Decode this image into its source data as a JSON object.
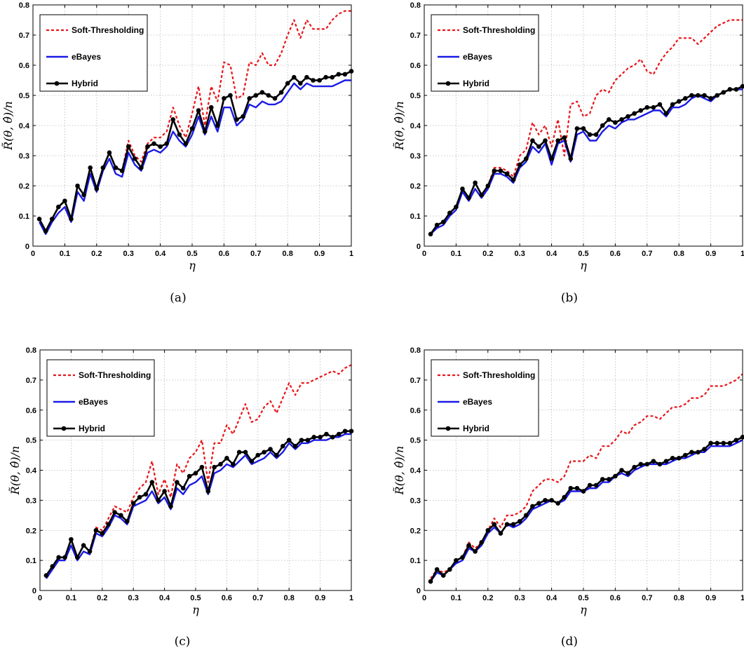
{
  "colors": {
    "soft_thresholding": "#e8161b",
    "ebayes": "#1a1ae6",
    "hybrid": "#000000"
  },
  "chart_data": [
    {
      "type": "line",
      "caption": "(a)",
      "xlabel": "η",
      "ylabel": "R̃(θ, θ̂)/n",
      "xlim": [
        0,
        1
      ],
      "ylim": [
        0,
        0.8
      ],
      "xticks": [
        "0",
        "0.1",
        "0.2",
        "0.3",
        "0.4",
        "0.5",
        "0.6",
        "0.7",
        "0.8",
        "0.9",
        "1"
      ],
      "yticks": [
        "0",
        "0.1",
        "0.2",
        "0.3",
        "0.4",
        "0.5",
        "0.6",
        "0.7",
        "0.8"
      ],
      "grid": true,
      "legend": "top-left",
      "x": [
        0.02,
        0.04,
        0.06,
        0.08,
        0.1,
        0.12,
        0.14,
        0.16,
        0.18,
        0.2,
        0.22,
        0.24,
        0.26,
        0.28,
        0.3,
        0.32,
        0.34,
        0.36,
        0.38,
        0.4,
        0.42,
        0.44,
        0.46,
        0.48,
        0.5,
        0.52,
        0.54,
        0.56,
        0.58,
        0.6,
        0.62,
        0.64,
        0.66,
        0.68,
        0.7,
        0.72,
        0.74,
        0.76,
        0.78,
        0.8,
        0.82,
        0.84,
        0.86,
        0.88,
        0.9,
        0.92,
        0.94,
        0.96,
        0.98,
        1.0
      ],
      "series": [
        {
          "name": "Soft-Thresholding",
          "style": "dashed",
          "values": [
            0.09,
            0.05,
            0.09,
            0.13,
            0.15,
            0.09,
            0.2,
            0.17,
            0.26,
            0.19,
            0.26,
            0.31,
            0.26,
            0.25,
            0.35,
            0.3,
            0.28,
            0.34,
            0.36,
            0.36,
            0.38,
            0.46,
            0.4,
            0.36,
            0.44,
            0.53,
            0.4,
            0.53,
            0.48,
            0.61,
            0.6,
            0.49,
            0.5,
            0.61,
            0.6,
            0.64,
            0.6,
            0.6,
            0.64,
            0.7,
            0.75,
            0.69,
            0.75,
            0.72,
            0.72,
            0.72,
            0.75,
            0.77,
            0.78,
            0.78
          ]
        },
        {
          "name": "eBayes",
          "style": "solid",
          "values": [
            0.08,
            0.04,
            0.08,
            0.11,
            0.13,
            0.08,
            0.18,
            0.15,
            0.24,
            0.18,
            0.25,
            0.29,
            0.24,
            0.23,
            0.31,
            0.27,
            0.25,
            0.31,
            0.32,
            0.31,
            0.33,
            0.38,
            0.35,
            0.33,
            0.37,
            0.43,
            0.37,
            0.43,
            0.38,
            0.46,
            0.46,
            0.4,
            0.42,
            0.47,
            0.46,
            0.48,
            0.47,
            0.47,
            0.48,
            0.51,
            0.54,
            0.52,
            0.54,
            0.53,
            0.53,
            0.53,
            0.53,
            0.54,
            0.55,
            0.55
          ]
        },
        {
          "name": "Hybrid",
          "style": "solid-marker",
          "values": [
            0.09,
            0.05,
            0.09,
            0.13,
            0.15,
            0.09,
            0.2,
            0.17,
            0.26,
            0.19,
            0.26,
            0.31,
            0.26,
            0.25,
            0.33,
            0.29,
            0.26,
            0.33,
            0.34,
            0.33,
            0.34,
            0.42,
            0.37,
            0.34,
            0.39,
            0.45,
            0.38,
            0.46,
            0.4,
            0.49,
            0.5,
            0.42,
            0.43,
            0.49,
            0.5,
            0.51,
            0.5,
            0.49,
            0.51,
            0.54,
            0.56,
            0.54,
            0.56,
            0.55,
            0.55,
            0.56,
            0.56,
            0.57,
            0.57,
            0.58
          ]
        }
      ]
    },
    {
      "type": "line",
      "caption": "(b)",
      "xlabel": "η",
      "ylabel": "R̃(θ, θ̂)/n",
      "xlim": [
        0,
        1
      ],
      "ylim": [
        0,
        0.8
      ],
      "xticks": [
        "0",
        "0.1",
        "0.2",
        "0.3",
        "0.4",
        "0.5",
        "0.6",
        "0.7",
        "0.8",
        "0.9",
        "1"
      ],
      "yticks": [
        "0",
        "0.1",
        "0.2",
        "0.3",
        "0.4",
        "0.5",
        "0.6",
        "0.7",
        "0.8"
      ],
      "grid": true,
      "legend": "top-left",
      "x": [
        0.02,
        0.04,
        0.06,
        0.08,
        0.1,
        0.12,
        0.14,
        0.16,
        0.18,
        0.2,
        0.22,
        0.24,
        0.26,
        0.28,
        0.3,
        0.32,
        0.34,
        0.36,
        0.38,
        0.4,
        0.42,
        0.44,
        0.46,
        0.48,
        0.5,
        0.52,
        0.54,
        0.56,
        0.58,
        0.6,
        0.62,
        0.64,
        0.66,
        0.68,
        0.7,
        0.72,
        0.74,
        0.76,
        0.78,
        0.8,
        0.82,
        0.84,
        0.86,
        0.88,
        0.9,
        0.92,
        0.94,
        0.96,
        0.98,
        1.0
      ],
      "series": [
        {
          "name": "Soft-Thresholding",
          "style": "dashed",
          "values": [
            0.04,
            0.07,
            0.08,
            0.11,
            0.13,
            0.19,
            0.16,
            0.21,
            0.17,
            0.2,
            0.26,
            0.26,
            0.25,
            0.23,
            0.3,
            0.32,
            0.41,
            0.37,
            0.4,
            0.33,
            0.42,
            0.3,
            0.47,
            0.48,
            0.43,
            0.44,
            0.5,
            0.52,
            0.51,
            0.55,
            0.57,
            0.59,
            0.6,
            0.62,
            0.58,
            0.57,
            0.61,
            0.64,
            0.66,
            0.69,
            0.69,
            0.69,
            0.67,
            0.69,
            0.71,
            0.73,
            0.74,
            0.75,
            0.75,
            0.75
          ]
        },
        {
          "name": "eBayes",
          "style": "solid",
          "values": [
            0.04,
            0.06,
            0.07,
            0.1,
            0.12,
            0.18,
            0.15,
            0.19,
            0.16,
            0.19,
            0.24,
            0.24,
            0.23,
            0.21,
            0.26,
            0.28,
            0.33,
            0.31,
            0.34,
            0.27,
            0.34,
            0.35,
            0.28,
            0.37,
            0.38,
            0.35,
            0.35,
            0.38,
            0.4,
            0.39,
            0.41,
            0.42,
            0.42,
            0.43,
            0.44,
            0.45,
            0.45,
            0.43,
            0.46,
            0.46,
            0.47,
            0.49,
            0.5,
            0.49,
            0.48,
            0.5,
            0.51,
            0.52,
            0.52,
            0.52
          ]
        },
        {
          "name": "Hybrid",
          "style": "solid-marker",
          "values": [
            0.04,
            0.07,
            0.08,
            0.11,
            0.13,
            0.19,
            0.16,
            0.21,
            0.17,
            0.2,
            0.25,
            0.25,
            0.24,
            0.22,
            0.27,
            0.29,
            0.35,
            0.33,
            0.35,
            0.29,
            0.35,
            0.36,
            0.29,
            0.39,
            0.39,
            0.37,
            0.37,
            0.4,
            0.42,
            0.41,
            0.42,
            0.43,
            0.44,
            0.45,
            0.46,
            0.46,
            0.47,
            0.44,
            0.47,
            0.48,
            0.49,
            0.5,
            0.5,
            0.5,
            0.49,
            0.5,
            0.51,
            0.52,
            0.52,
            0.53
          ]
        }
      ]
    },
    {
      "type": "line",
      "caption": "(c)",
      "xlabel": "η",
      "ylabel": "R̃(θ, θ̂)/n",
      "xlim": [
        0,
        1
      ],
      "ylim": [
        0,
        0.8
      ],
      "xticks": [
        "0",
        "0.1",
        "0.2",
        "0.3",
        "0.4",
        "0.5",
        "0.6",
        "0.7",
        "0.8",
        "0.9",
        "1"
      ],
      "yticks": [
        "0",
        "0.1",
        "0.2",
        "0.3",
        "0.4",
        "0.5",
        "0.6",
        "0.7",
        "0.8"
      ],
      "grid": true,
      "legend": "top-left",
      "x": [
        0.02,
        0.04,
        0.06,
        0.08,
        0.1,
        0.12,
        0.14,
        0.16,
        0.18,
        0.2,
        0.22,
        0.24,
        0.26,
        0.28,
        0.3,
        0.32,
        0.34,
        0.36,
        0.38,
        0.4,
        0.42,
        0.44,
        0.46,
        0.48,
        0.5,
        0.52,
        0.54,
        0.56,
        0.58,
        0.6,
        0.62,
        0.64,
        0.66,
        0.68,
        0.7,
        0.72,
        0.74,
        0.76,
        0.78,
        0.8,
        0.82,
        0.84,
        0.86,
        0.88,
        0.9,
        0.92,
        0.94,
        0.96,
        0.98,
        1.0
      ],
      "series": [
        {
          "name": "Soft-Thresholding",
          "style": "dashed",
          "values": [
            0.05,
            0.08,
            0.11,
            0.11,
            0.17,
            0.11,
            0.15,
            0.13,
            0.21,
            0.2,
            0.24,
            0.28,
            0.27,
            0.26,
            0.31,
            0.34,
            0.36,
            0.43,
            0.32,
            0.37,
            0.31,
            0.42,
            0.39,
            0.44,
            0.46,
            0.5,
            0.36,
            0.49,
            0.49,
            0.55,
            0.52,
            0.57,
            0.62,
            0.56,
            0.57,
            0.61,
            0.63,
            0.59,
            0.64,
            0.69,
            0.65,
            0.69,
            0.69,
            0.7,
            0.71,
            0.72,
            0.73,
            0.72,
            0.74,
            0.75
          ]
        },
        {
          "name": "eBayes",
          "style": "solid",
          "values": [
            0.04,
            0.07,
            0.1,
            0.1,
            0.15,
            0.1,
            0.13,
            0.12,
            0.19,
            0.18,
            0.21,
            0.25,
            0.24,
            0.22,
            0.28,
            0.29,
            0.3,
            0.33,
            0.29,
            0.31,
            0.27,
            0.34,
            0.32,
            0.35,
            0.36,
            0.38,
            0.32,
            0.39,
            0.4,
            0.42,
            0.41,
            0.43,
            0.45,
            0.42,
            0.43,
            0.44,
            0.46,
            0.44,
            0.46,
            0.49,
            0.47,
            0.49,
            0.49,
            0.5,
            0.5,
            0.5,
            0.51,
            0.51,
            0.52,
            0.52
          ]
        },
        {
          "name": "Hybrid",
          "style": "solid-marker",
          "values": [
            0.05,
            0.08,
            0.11,
            0.11,
            0.17,
            0.11,
            0.15,
            0.13,
            0.2,
            0.19,
            0.22,
            0.26,
            0.25,
            0.23,
            0.29,
            0.31,
            0.32,
            0.36,
            0.3,
            0.33,
            0.28,
            0.36,
            0.34,
            0.38,
            0.39,
            0.41,
            0.33,
            0.41,
            0.42,
            0.44,
            0.42,
            0.46,
            0.46,
            0.43,
            0.45,
            0.46,
            0.47,
            0.45,
            0.48,
            0.5,
            0.48,
            0.5,
            0.5,
            0.51,
            0.51,
            0.52,
            0.51,
            0.52,
            0.53,
            0.53
          ]
        }
      ]
    },
    {
      "type": "line",
      "caption": "(d)",
      "xlabel": "η",
      "ylabel": "R̃(θ, θ̂)/n",
      "xlim": [
        0,
        1
      ],
      "ylim": [
        0,
        0.8
      ],
      "xticks": [
        "0",
        "0.1",
        "0.2",
        "0.3",
        "0.4",
        "0.5",
        "0.6",
        "0.7",
        "0.8",
        "0.9",
        "1"
      ],
      "yticks": [
        "0",
        "0.1",
        "0.2",
        "0.3",
        "0.4",
        "0.5",
        "0.6",
        "0.7",
        "0.8"
      ],
      "grid": true,
      "legend": "top-left",
      "x": [
        0.02,
        0.04,
        0.06,
        0.08,
        0.1,
        0.12,
        0.14,
        0.16,
        0.18,
        0.2,
        0.22,
        0.24,
        0.26,
        0.28,
        0.3,
        0.32,
        0.34,
        0.36,
        0.38,
        0.4,
        0.42,
        0.44,
        0.46,
        0.48,
        0.5,
        0.52,
        0.54,
        0.56,
        0.58,
        0.6,
        0.62,
        0.64,
        0.66,
        0.68,
        0.7,
        0.72,
        0.74,
        0.76,
        0.78,
        0.8,
        0.82,
        0.84,
        0.86,
        0.88,
        0.9,
        0.92,
        0.94,
        0.96,
        0.98,
        1.0
      ],
      "series": [
        {
          "name": "Soft-Thresholding",
          "style": "dashed",
          "values": [
            0.04,
            0.07,
            0.06,
            0.07,
            0.1,
            0.11,
            0.16,
            0.14,
            0.16,
            0.2,
            0.24,
            0.21,
            0.25,
            0.25,
            0.26,
            0.28,
            0.33,
            0.35,
            0.37,
            0.37,
            0.36,
            0.38,
            0.43,
            0.43,
            0.43,
            0.45,
            0.44,
            0.48,
            0.48,
            0.5,
            0.53,
            0.52,
            0.55,
            0.56,
            0.58,
            0.58,
            0.57,
            0.59,
            0.61,
            0.61,
            0.62,
            0.64,
            0.64,
            0.65,
            0.68,
            0.68,
            0.68,
            0.69,
            0.7,
            0.72
          ]
        },
        {
          "name": "eBayes",
          "style": "solid",
          "values": [
            0.03,
            0.06,
            0.05,
            0.07,
            0.09,
            0.1,
            0.14,
            0.13,
            0.15,
            0.19,
            0.21,
            0.19,
            0.22,
            0.21,
            0.22,
            0.24,
            0.27,
            0.28,
            0.29,
            0.3,
            0.29,
            0.3,
            0.33,
            0.33,
            0.33,
            0.34,
            0.34,
            0.36,
            0.36,
            0.38,
            0.39,
            0.38,
            0.4,
            0.41,
            0.42,
            0.42,
            0.42,
            0.42,
            0.43,
            0.44,
            0.44,
            0.45,
            0.46,
            0.46,
            0.48,
            0.48,
            0.48,
            0.48,
            0.49,
            0.5
          ]
        },
        {
          "name": "Hybrid",
          "style": "solid-marker",
          "values": [
            0.03,
            0.07,
            0.05,
            0.07,
            0.1,
            0.11,
            0.15,
            0.13,
            0.16,
            0.2,
            0.22,
            0.19,
            0.22,
            0.22,
            0.23,
            0.25,
            0.28,
            0.29,
            0.3,
            0.3,
            0.29,
            0.31,
            0.34,
            0.34,
            0.33,
            0.35,
            0.35,
            0.37,
            0.37,
            0.38,
            0.4,
            0.39,
            0.41,
            0.42,
            0.42,
            0.43,
            0.42,
            0.43,
            0.44,
            0.44,
            0.45,
            0.46,
            0.46,
            0.47,
            0.49,
            0.49,
            0.49,
            0.49,
            0.5,
            0.51
          ]
        }
      ]
    }
  ]
}
